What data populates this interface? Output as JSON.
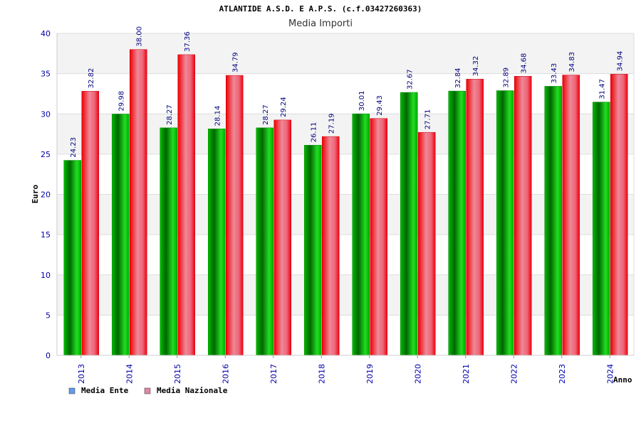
{
  "chart_data": {
    "type": "bar",
    "title": "ATLANTIDE A.S.D. E A.P.S. (c.f.03427260363)",
    "subtitle": "Media Importi",
    "xlabel": "Anno",
    "ylabel": "Euro",
    "ylim": [
      0,
      40
    ],
    "yticks": [
      0,
      5,
      10,
      15,
      20,
      25,
      30,
      35,
      40
    ],
    "grid": true,
    "legend_position": "bottom-left",
    "categories": [
      "2013",
      "2014",
      "2015",
      "2016",
      "2017",
      "2018",
      "2019",
      "2020",
      "2021",
      "2022",
      "2023",
      "2024"
    ],
    "series": [
      {
        "name": "Media Ente",
        "color": "#00aa00",
        "legend_color": "#6699ee",
        "values": [
          24.23,
          29.98,
          28.27,
          28.14,
          28.27,
          26.11,
          30.01,
          32.67,
          32.84,
          32.89,
          33.43,
          31.47
        ],
        "labels": [
          "24.23",
          "29.98",
          "28.27",
          "28.14",
          "28.27",
          "26.11",
          "30.01",
          "32.67",
          "32.84",
          "32.89",
          "33.43",
          "31.47"
        ]
      },
      {
        "name": "Media Nazionale",
        "color": "#ee1122",
        "legend_color": "#dd88aa",
        "values": [
          32.82,
          38.0,
          37.36,
          34.79,
          29.24,
          27.19,
          29.43,
          27.71,
          34.32,
          34.68,
          34.83,
          34.94
        ],
        "labels": [
          "32.82",
          "38.00",
          "37.36",
          "34.79",
          "29.24",
          "27.19",
          "29.43",
          "27.71",
          "34.32",
          "34.68",
          "34.83",
          "34.94"
        ]
      }
    ]
  }
}
